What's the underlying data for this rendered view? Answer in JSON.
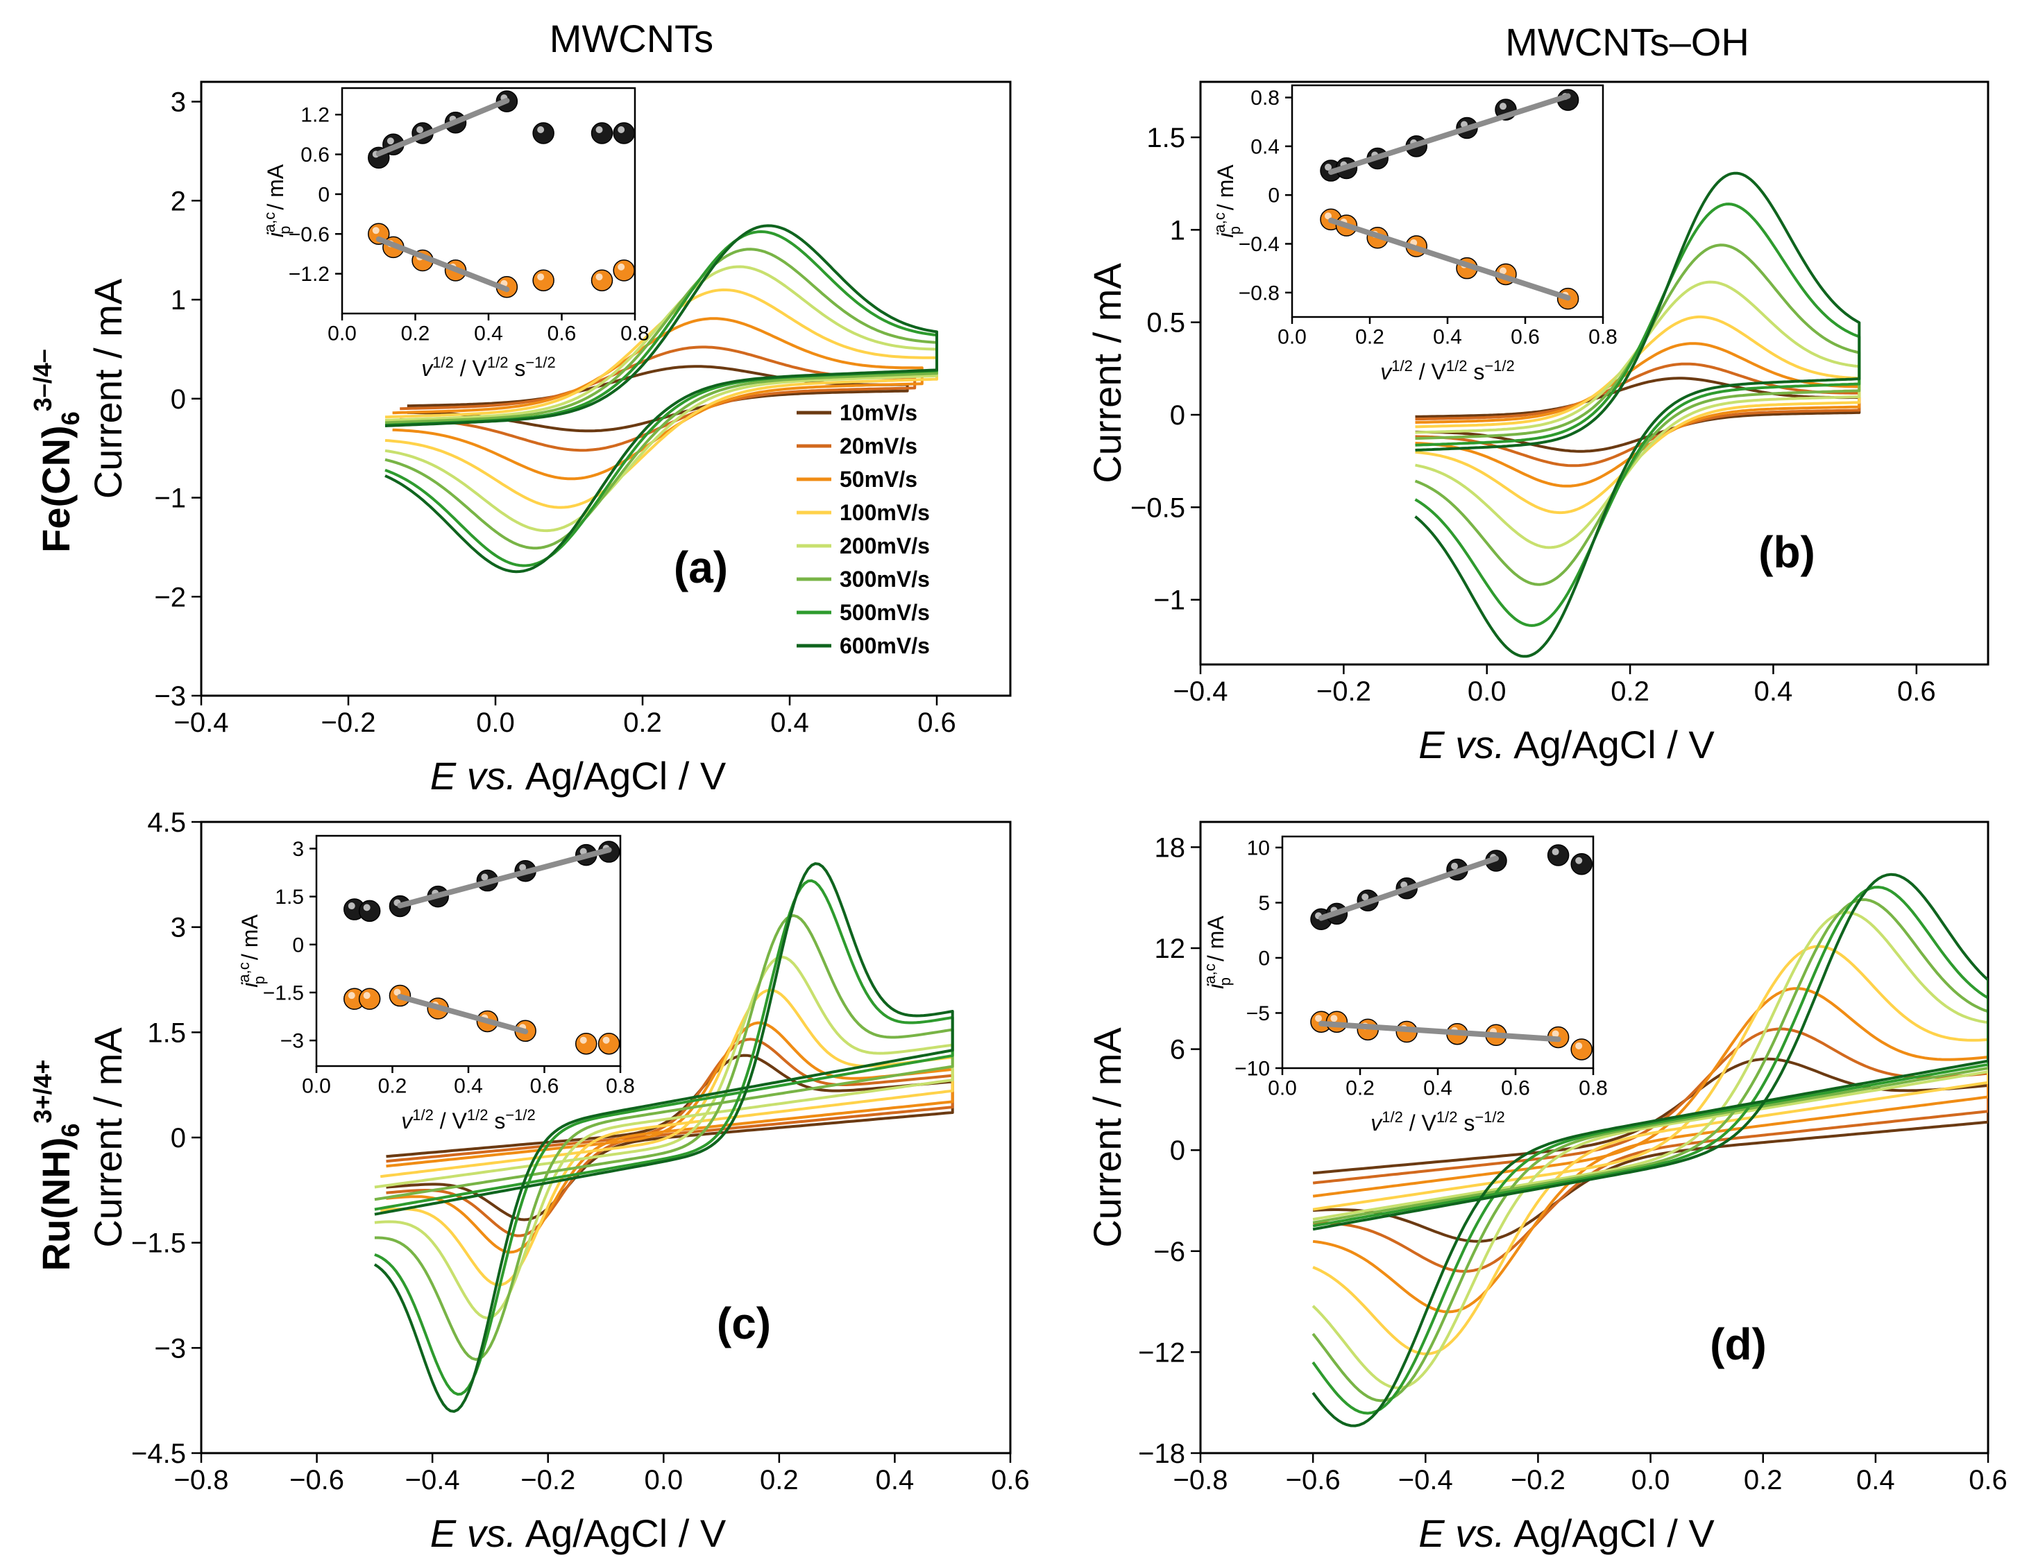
{
  "figure": {
    "column_titles": [
      "MWCNTs",
      "MWCNTs–OH"
    ],
    "row_labels": [
      {
        "main": "Fe(CN)",
        "sub": "6",
        "sup": "3–/4–"
      },
      {
        "main": "Ru(NH)",
        "sub": "6",
        "sup": "3+/4+"
      }
    ],
    "ylabel": "Current  /  mA",
    "xlabel": {
      "italic": "E vs.",
      "rest": " Ag/AgCl   /  V"
    },
    "inset_ylabel": {
      "i": "i",
      "sup": "a,c",
      "sub": "p",
      "rest": "  /  mA"
    },
    "inset_xlabel": {
      "v": "v",
      "sup1": "1/2",
      "mid": "  /  V",
      "sup2": "1/2",
      "s": " s",
      "sup3": "−1/2"
    }
  },
  "legend": {
    "entries": [
      {
        "label": "10mV/s",
        "color": "#6b3a12"
      },
      {
        "label": "20mV/s",
        "color": "#d2691e"
      },
      {
        "label": "50mV/s",
        "color": "#f08c14"
      },
      {
        "label": "100mV/s",
        "color": "#ffd24a"
      },
      {
        "label": "200mV/s",
        "color": "#c8e06e"
      },
      {
        "label": "300mV/s",
        "color": "#78b446"
      },
      {
        "label": "500mV/s",
        "color": "#2e9b2e"
      },
      {
        "label": "600mV/s",
        "color": "#0f641e"
      }
    ]
  },
  "colors": {
    "anodic_marker": "#1a1a1a",
    "cathodic_marker": "#f28a1c",
    "fit_line": "#8c8c8c",
    "axis": "#000000"
  },
  "chart_data": [
    {
      "type": "line",
      "panel_label": "(a)",
      "xlabel": "E vs. Ag/AgCl / V",
      "ylabel": "Current / mA",
      "xlim": [
        -0.4,
        0.7
      ],
      "ylim": [
        -3,
        3.2
      ],
      "xticks": [
        -0.4,
        -0.2,
        0.0,
        0.2,
        0.4,
        0.6
      ],
      "xtick_labels": [
        "−0.4",
        "−0.2",
        "0.0",
        "0.2",
        "0.4",
        "0.6"
      ],
      "yticks": [
        -3,
        -2,
        -1,
        0,
        1,
        2,
        3
      ],
      "ytick_labels": [
        "−3",
        "−2",
        "−1",
        "0",
        "1",
        "2",
        "3"
      ],
      "cv": {
        "E_start": -0.15,
        "E_end": 0.6,
        "E0": 0.2,
        "w": 0.07,
        "bg_base": [
          0,
          0.13
        ],
        "bg_tilt": 0.6,
        "series": [
          {
            "name": "10mV/s",
            "ip": 0.28,
            "dE": 0.1,
            "start": -0.12,
            "end": 0.56
          },
          {
            "name": "20mV/s",
            "ip": 0.45,
            "dE": 0.12,
            "start": -0.13,
            "end": 0.57
          },
          {
            "name": "50mV/s",
            "ip": 0.7,
            "dE": 0.15,
            "start": -0.14,
            "end": 0.58
          },
          {
            "name": "100mV/s",
            "ip": 0.95,
            "dE": 0.18,
            "start": -0.15,
            "end": 0.6
          },
          {
            "name": "200mV/s",
            "ip": 1.15,
            "dE": 0.22,
            "start": -0.15,
            "end": 0.6
          },
          {
            "name": "300mV/s",
            "ip": 1.3,
            "dE": 0.25,
            "start": -0.15,
            "end": 0.6
          },
          {
            "name": "500mV/s",
            "ip": 1.45,
            "dE": 0.28,
            "start": -0.15,
            "end": 0.6
          },
          {
            "name": "600mV/s",
            "ip": 1.5,
            "dE": 0.3,
            "start": -0.15,
            "end": 0.6
          }
        ]
      },
      "inset": {
        "xlim": [
          0.0,
          0.8
        ],
        "ylim": [
          -1.8,
          1.6
        ],
        "xticks": [
          0.0,
          0.2,
          0.4,
          0.6,
          0.8
        ],
        "xtick_labels": [
          "0.0",
          "0.2",
          "0.4",
          "0.6",
          "0.8"
        ],
        "yticks": [
          -1.2,
          -0.6,
          0,
          0.6,
          1.2
        ],
        "ytick_labels": [
          "−1.2",
          "−0.6",
          "0",
          "0.6",
          "1.2"
        ],
        "x": [
          0.1,
          0.14,
          0.22,
          0.31,
          0.45,
          0.55,
          0.71,
          0.77
        ],
        "anodic": [
          0.55,
          0.75,
          0.92,
          1.08,
          1.4,
          0.92,
          0.92,
          0.92
        ],
        "cathodic": [
          -0.6,
          -0.8,
          -1.0,
          -1.15,
          -1.4,
          -1.3,
          -1.3,
          -1.15
        ],
        "fit_range": [
          0.1,
          0.45
        ]
      }
    },
    {
      "type": "line",
      "panel_label": "(b)",
      "xlabel": "E vs. Ag/AgCl / V",
      "ylabel": "Current / mA",
      "xlim": [
        -0.4,
        0.7
      ],
      "ylim": [
        -1.35,
        1.8
      ],
      "xticks": [
        -0.4,
        -0.2,
        0.0,
        0.2,
        0.4,
        0.6
      ],
      "xtick_labels": [
        "−0.4",
        "−0.2",
        "0.0",
        "0.2",
        "0.4",
        "0.6"
      ],
      "yticks": [
        -1,
        -0.5,
        0,
        0.5,
        1,
        1.5
      ],
      "ytick_labels": [
        "−1",
        "−0.5",
        "0",
        "0.5",
        "1",
        "1.5"
      ],
      "cv": {
        "E_start": -0.1,
        "E_end": 0.52,
        "E0": 0.2,
        "w": 0.06,
        "bg_base": [
          0.03,
          0.1
        ],
        "bg_tilt": 0.3,
        "series": [
          {
            "name": "10mV/s",
            "ip": 0.15,
            "dE": 0.1,
            "start": -0.1,
            "end": 0.52
          },
          {
            "name": "20mV/s",
            "ip": 0.22,
            "dE": 0.12,
            "start": -0.1,
            "end": 0.52
          },
          {
            "name": "50mV/s",
            "ip": 0.32,
            "dE": 0.14,
            "start": -0.1,
            "end": 0.52
          },
          {
            "name": "100mV/s",
            "ip": 0.45,
            "dE": 0.16,
            "start": -0.1,
            "end": 0.52
          },
          {
            "name": "200mV/s",
            "ip": 0.62,
            "dE": 0.19,
            "start": -0.1,
            "end": 0.52
          },
          {
            "name": "300mV/s",
            "ip": 0.8,
            "dE": 0.22,
            "start": -0.1,
            "end": 0.52
          },
          {
            "name": "500mV/s",
            "ip": 1.0,
            "dE": 0.24,
            "start": -0.1,
            "end": 0.52
          },
          {
            "name": "600mV/s",
            "ip": 1.15,
            "dE": 0.26,
            "start": -0.1,
            "end": 0.52
          }
        ]
      },
      "inset": {
        "xlim": [
          0.0,
          0.8
        ],
        "ylim": [
          -1.0,
          0.9
        ],
        "xticks": [
          0.0,
          0.2,
          0.4,
          0.6,
          0.8
        ],
        "xtick_labels": [
          "0.0",
          "0.2",
          "0.4",
          "0.6",
          "0.8"
        ],
        "yticks": [
          -0.8,
          -0.4,
          0,
          0.4,
          0.8
        ],
        "ytick_labels": [
          "−0.8",
          "−0.4",
          "0",
          "0.4",
          "0.8"
        ],
        "x": [
          0.1,
          0.14,
          0.22,
          0.32,
          0.45,
          0.55,
          0.71
        ],
        "anodic": [
          0.2,
          0.22,
          0.3,
          0.4,
          0.55,
          0.7,
          0.78
        ],
        "cathodic": [
          -0.2,
          -0.25,
          -0.35,
          -0.42,
          -0.6,
          -0.65,
          -0.85
        ],
        "fit_range": [
          0.1,
          0.71
        ]
      }
    },
    {
      "type": "line",
      "panel_label": "(c)",
      "xlabel": "E vs. Ag/AgCl / V",
      "ylabel": "Current / mA",
      "xlim": [
        -0.8,
        0.6
      ],
      "ylim": [
        -4.5,
        4.5
      ],
      "xticks": [
        -0.8,
        -0.6,
        -0.4,
        -0.2,
        0.0,
        0.2,
        0.4,
        0.6
      ],
      "xtick_labels": [
        "−0.8",
        "−0.6",
        "−0.4",
        "−0.2",
        "0.0",
        "0.2",
        "0.4",
        "0.6"
      ],
      "yticks": [
        -4.5,
        -3,
        -1.5,
        0,
        1.5,
        3,
        4.5
      ],
      "ytick_labels": [
        "−4.5",
        "−3",
        "−1.5",
        "0",
        "1.5",
        "3",
        "4.5"
      ],
      "cv": {
        "E_start": -0.5,
        "E_end": 0.5,
        "E0": -0.05,
        "w": 0.045,
        "bg_base": [
          0.2,
          0.2
        ],
        "bg_tilt": 3,
        "series": [
          {
            "name": "10mV/s",
            "ip": 0.8,
            "dE": 0.35,
            "start": -0.48,
            "end": 0.5
          },
          {
            "name": "20mV/s",
            "ip": 1.0,
            "dE": 0.37,
            "start": -0.48,
            "end": 0.5
          },
          {
            "name": "50mV/s",
            "ip": 1.2,
            "dE": 0.4,
            "start": -0.48,
            "end": 0.5
          },
          {
            "name": "100mV/s",
            "ip": 1.6,
            "dE": 0.44,
            "start": -0.49,
            "end": 0.5
          },
          {
            "name": "200mV/s",
            "ip": 2.0,
            "dE": 0.48,
            "start": -0.5,
            "end": 0.5
          },
          {
            "name": "300mV/s",
            "ip": 2.5,
            "dE": 0.52,
            "start": -0.5,
            "end": 0.5
          },
          {
            "name": "500mV/s",
            "ip": 2.9,
            "dE": 0.58,
            "start": -0.5,
            "end": 0.5
          },
          {
            "name": "600mV/s",
            "ip": 3.1,
            "dE": 0.6,
            "start": -0.5,
            "end": 0.5
          }
        ]
      },
      "inset": {
        "xlim": [
          0.0,
          0.8
        ],
        "ylim": [
          -3.8,
          3.4
        ],
        "xticks": [
          0.0,
          0.2,
          0.4,
          0.6,
          0.8
        ],
        "xtick_labels": [
          "0.0",
          "0.2",
          "0.4",
          "0.6",
          "0.8"
        ],
        "yticks": [
          -3,
          -1.5,
          0,
          1.5,
          3
        ],
        "ytick_labels": [
          "−3",
          "−1.5",
          "0",
          "1.5",
          "3"
        ],
        "x": [
          0.1,
          0.14,
          0.22,
          0.32,
          0.45,
          0.55,
          0.71,
          0.77
        ],
        "anodic": [
          1.1,
          1.05,
          1.2,
          1.5,
          2.0,
          2.3,
          2.8,
          2.9
        ],
        "cathodic": [
          -1.7,
          -1.7,
          -1.6,
          -2.0,
          -2.4,
          -2.7,
          -3.1,
          -3.1
        ],
        "fit_range": [
          0.22,
          0.77
        ],
        "cathodic_fit_range": [
          0.22,
          0.55
        ]
      }
    },
    {
      "type": "line",
      "panel_label": "(d)",
      "xlabel": "E vs. Ag/AgCl / V",
      "ylabel": "Current / mA",
      "xlim": [
        -0.8,
        0.6
      ],
      "ylim": [
        -18,
        19.5
      ],
      "xticks": [
        -0.8,
        -0.6,
        -0.4,
        -0.2,
        0.0,
        0.2,
        0.4,
        0.6
      ],
      "xtick_labels": [
        "−0.8",
        "−0.6",
        "−0.4",
        "−0.2",
        "0.0",
        "0.2",
        "0.4",
        "0.6"
      ],
      "yticks": [
        -18,
        -12,
        -6,
        0,
        6,
        12,
        18
      ],
      "ytick_labels": [
        "−18",
        "−12",
        "−6",
        "0",
        "6",
        "12",
        "18"
      ],
      "cv": {
        "E_start": -0.6,
        "E_end": 0.6,
        "E0": -0.05,
        "w": 0.08,
        "bg_base": [
          0.8,
          1.0
        ],
        "bg_tilt": 12,
        "series": [
          {
            "name": "10mV/s",
            "ip": 3.5,
            "dE": 0.45,
            "start": -0.6,
            "end": 0.6
          },
          {
            "name": "20mV/s",
            "ip": 5,
            "dE": 0.5,
            "start": -0.6,
            "end": 0.6
          },
          {
            "name": "50mV/s",
            "ip": 7,
            "dE": 0.56,
            "start": -0.6,
            "end": 0.6
          },
          {
            "name": "100mV/s",
            "ip": 9,
            "dE": 0.64,
            "start": -0.6,
            "end": 0.6
          },
          {
            "name": "200mV/s",
            "ip": 10.5,
            "dE": 0.74,
            "start": -0.6,
            "end": 0.6
          },
          {
            "name": "300mV/s",
            "ip": 11,
            "dE": 0.8,
            "start": -0.6,
            "end": 0.6
          },
          {
            "name": "500mV/s",
            "ip": 11.5,
            "dE": 0.85,
            "start": -0.6,
            "end": 0.6
          },
          {
            "name": "600mV/s",
            "ip": 12,
            "dE": 0.9,
            "start": -0.6,
            "end": 0.6
          }
        ]
      },
      "inset": {
        "xlim": [
          0.0,
          0.8
        ],
        "ylim": [
          -10,
          11
        ],
        "xticks": [
          0.0,
          0.2,
          0.4,
          0.6,
          0.8
        ],
        "xtick_labels": [
          "0.0",
          "0.2",
          "0.4",
          "0.6",
          "0.8"
        ],
        "yticks": [
          -10,
          -5,
          0,
          5,
          10
        ],
        "ytick_labels": [
          "−10",
          "−5",
          "0",
          "5",
          "10"
        ],
        "x": [
          0.1,
          0.14,
          0.22,
          0.32,
          0.45,
          0.55,
          0.71,
          0.77
        ],
        "anodic": [
          3.5,
          4.0,
          5.2,
          6.3,
          8.0,
          8.8,
          9.3,
          8.5
        ],
        "cathodic": [
          -5.8,
          -5.8,
          -6.5,
          -6.7,
          -6.9,
          -7.0,
          -7.2,
          -8.3
        ],
        "fit_range": [
          0.1,
          0.55
        ],
        "cathodic_fit_range": [
          0.1,
          0.71
        ]
      }
    }
  ]
}
